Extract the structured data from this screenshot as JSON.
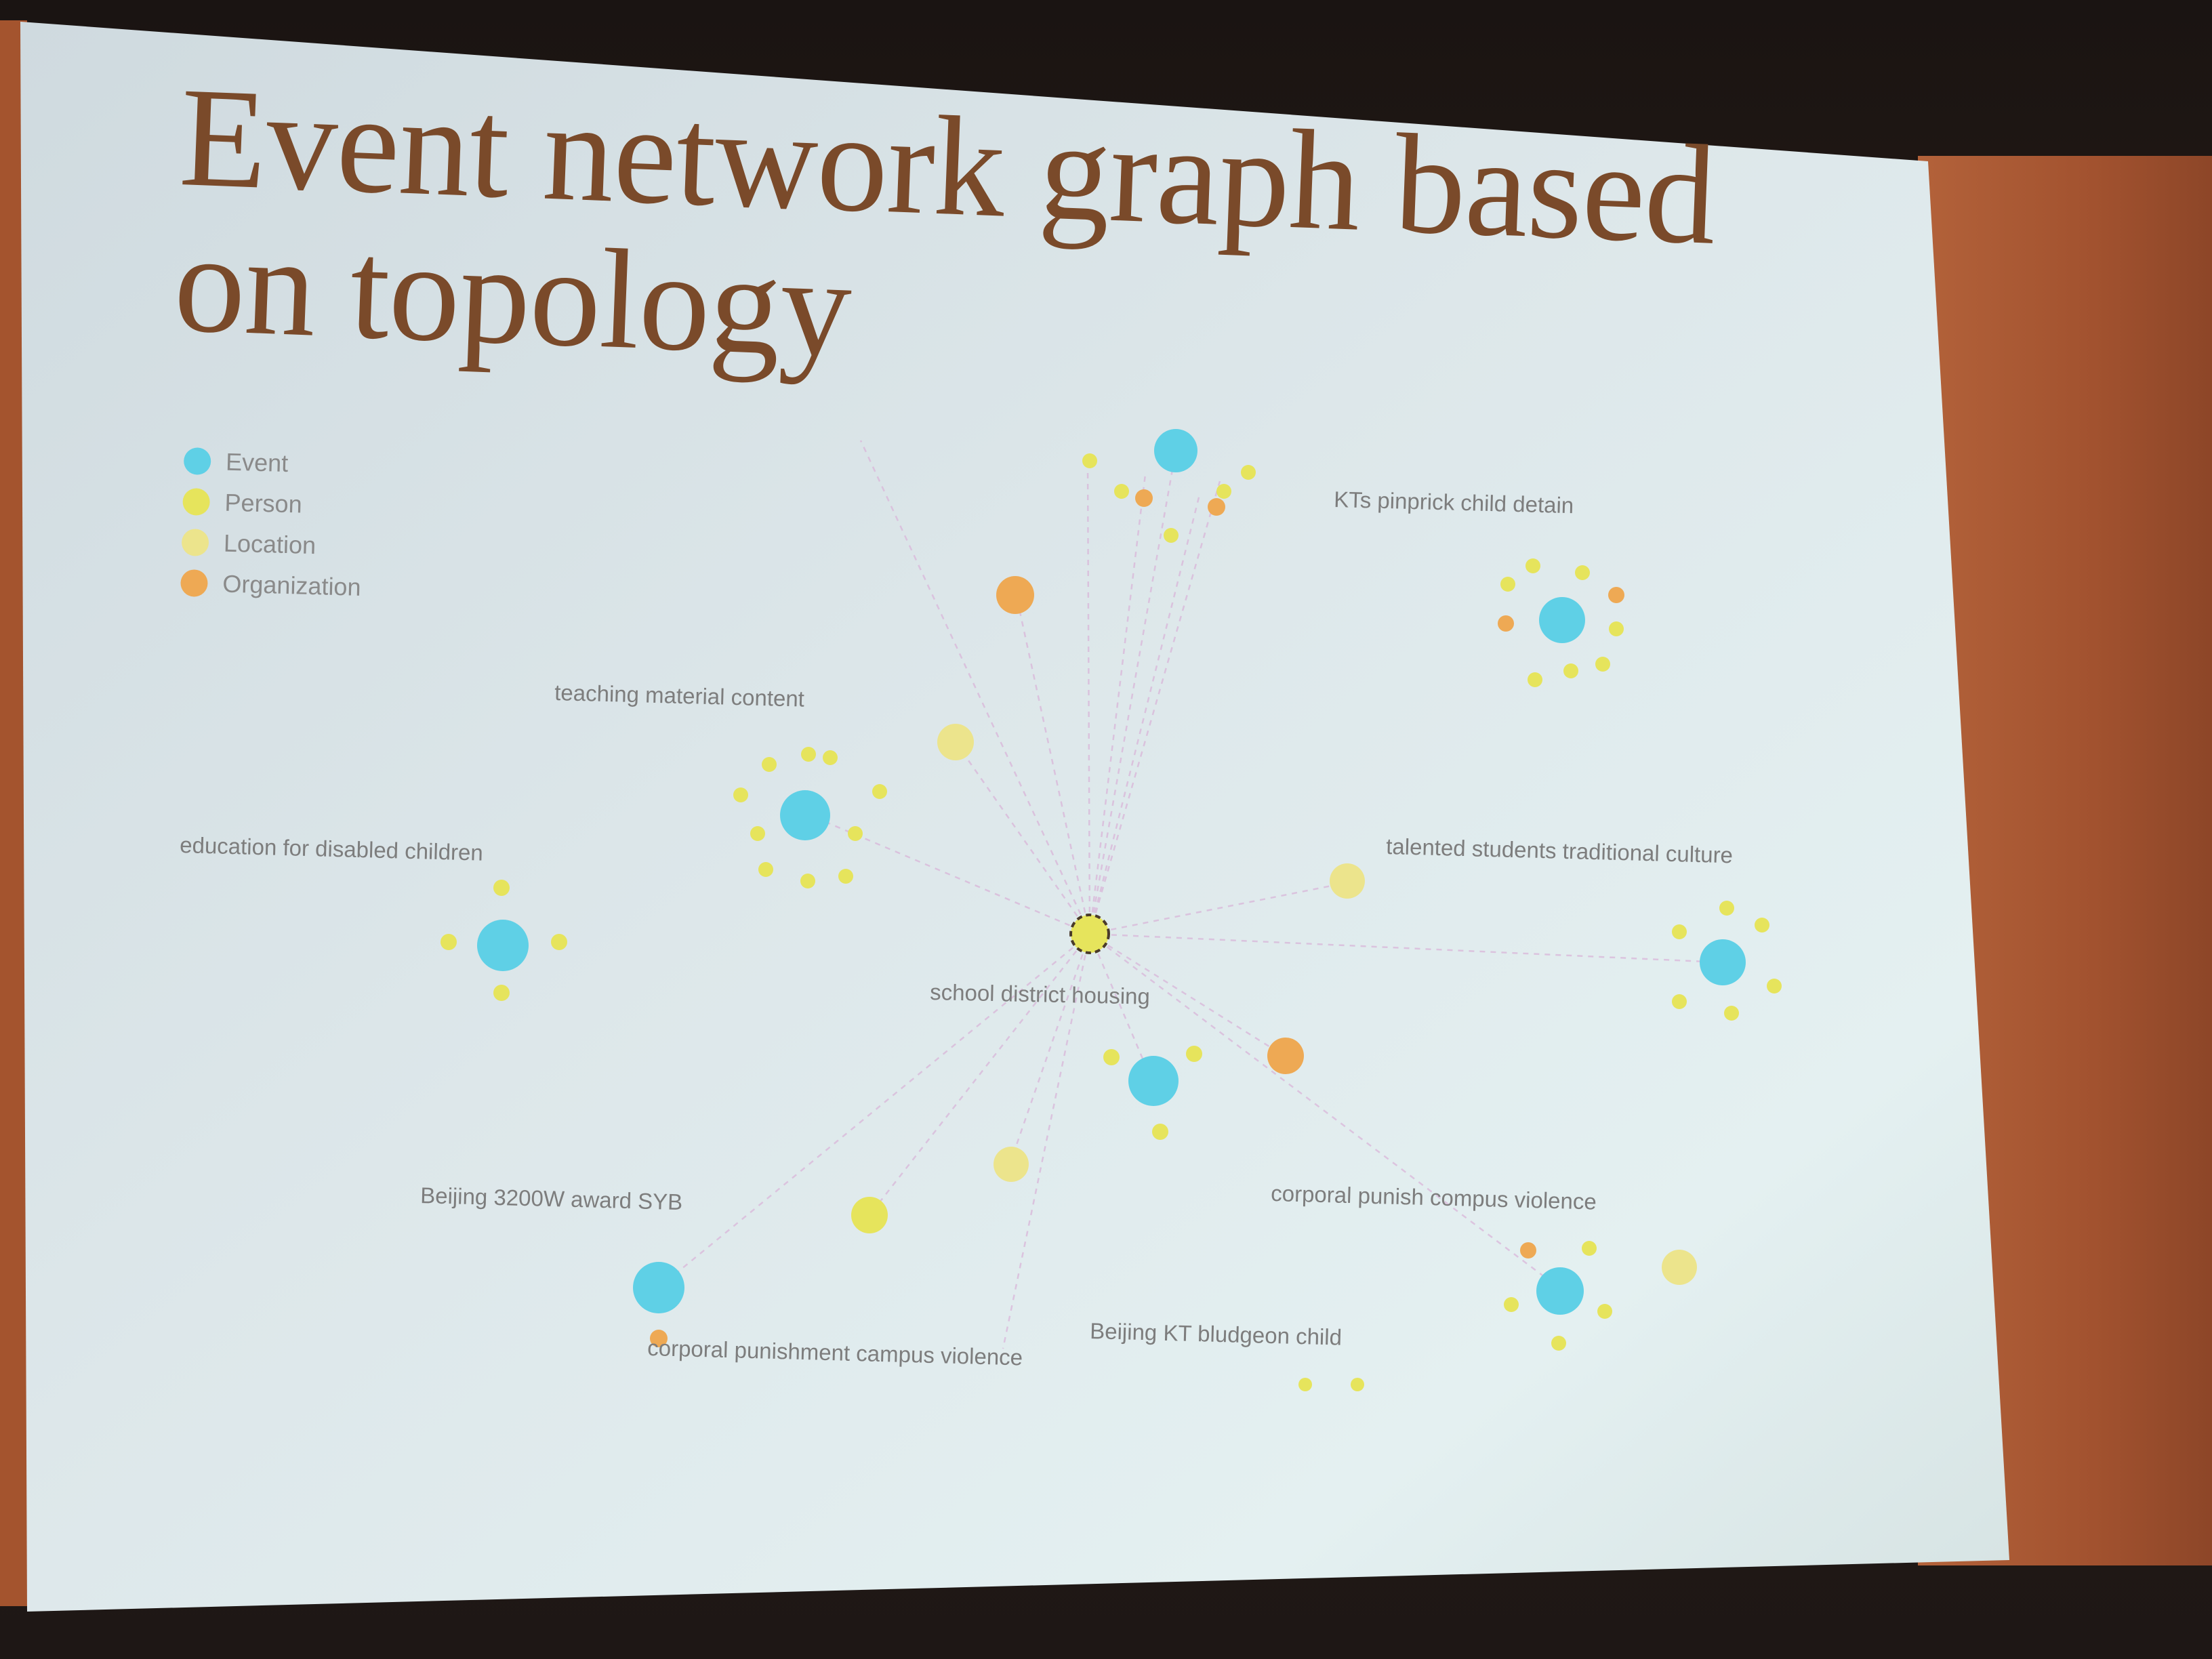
{
  "slide": {
    "title": "Event network graph based on topology"
  },
  "legend": [
    {
      "label": "Event",
      "color": "#5fd0e6"
    },
    {
      "label": "Person",
      "color": "#e6e45c"
    },
    {
      "label": "Location",
      "color": "#ece48c"
    },
    {
      "label": "Organization",
      "color": "#eea954"
    }
  ],
  "graph": {
    "center": {
      "label": "school district housing",
      "type": "Location"
    },
    "events": [
      {
        "label": "KTs pinprick child detain"
      },
      {
        "label": "teaching material content"
      },
      {
        "label": "education for disabled children"
      },
      {
        "label": "talented students traditional culture"
      },
      {
        "label": "Beijing 3200W award SYB"
      },
      {
        "label": "corporal punish compus violence"
      },
      {
        "label": "corporal punishment campus violence"
      },
      {
        "label": "Beijing KT bludgeon child"
      }
    ]
  }
}
